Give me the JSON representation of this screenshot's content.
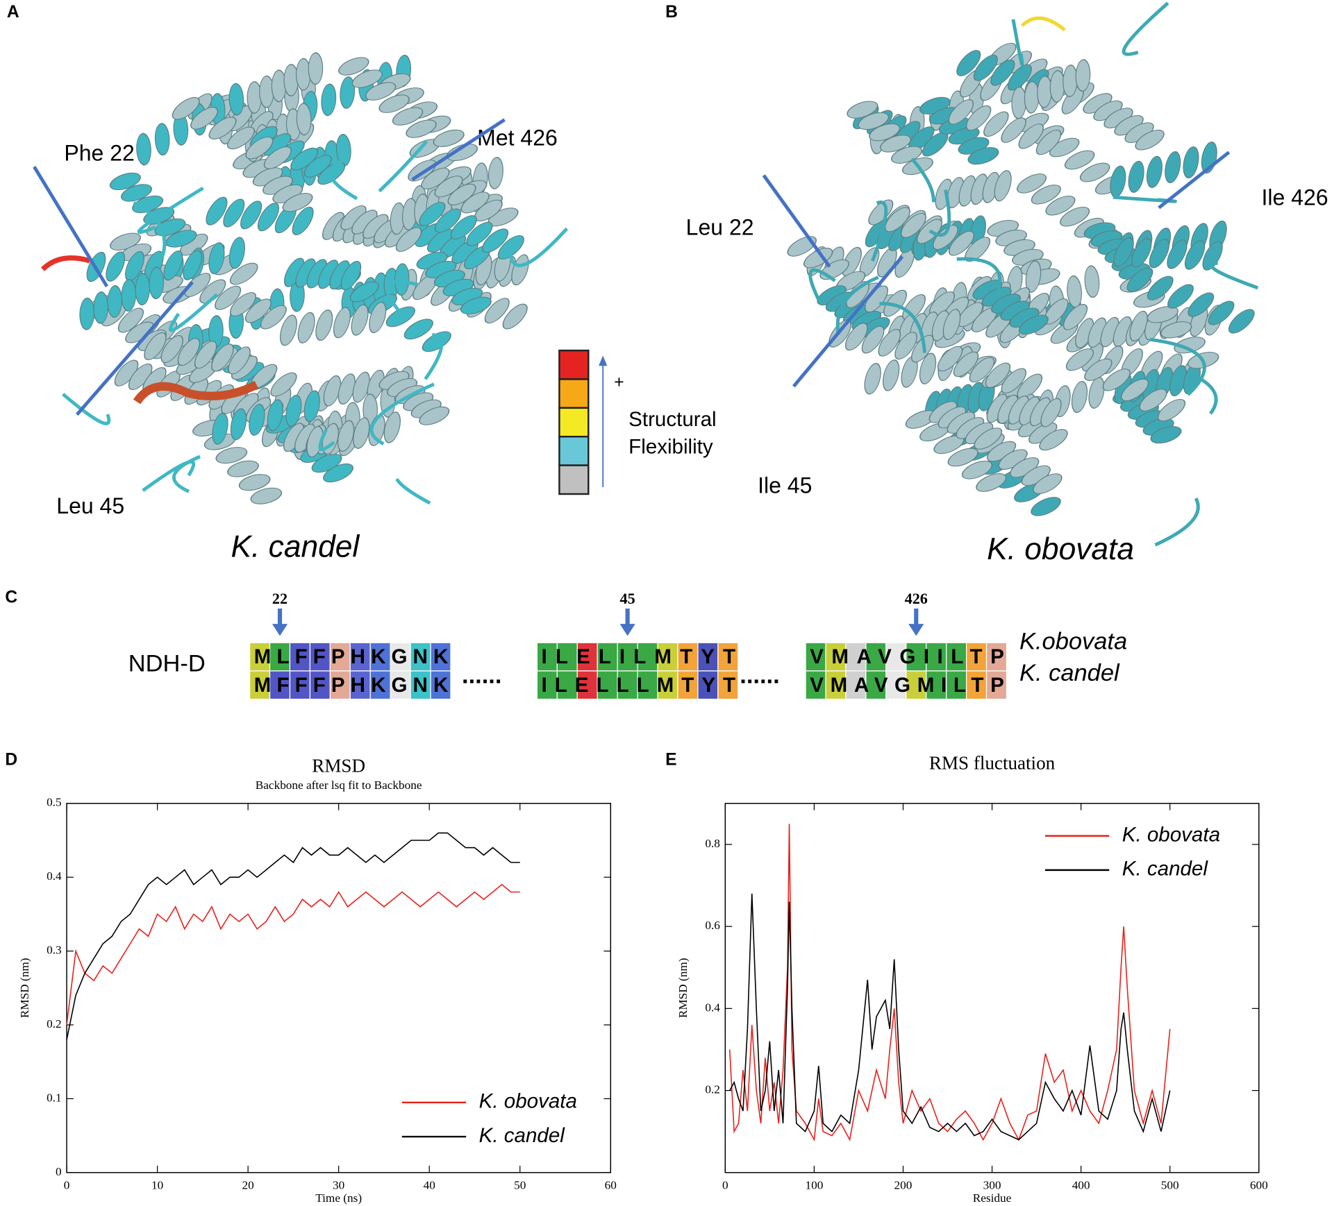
{
  "panels": {
    "a": "A",
    "b": "B",
    "c": "C",
    "d": "D",
    "e": "E"
  },
  "structures": {
    "candel": {
      "species": "K. candel",
      "residues": [
        "Phe 22",
        "Met 426",
        "Leu 45"
      ]
    },
    "obovata": {
      "species": "K. obovata",
      "residues": [
        "Leu 22",
        "Ile 426",
        "Ile 45"
      ]
    },
    "scale": {
      "plus": "+",
      "label": [
        "Structural",
        "Flexibility"
      ],
      "colors": [
        "#e52421",
        "#f7a816",
        "#f4ea23",
        "#68c8d8",
        "#c0c0c0"
      ]
    }
  },
  "alignment": {
    "gene": "NDH-D",
    "positions": [
      "22",
      "45",
      "426"
    ],
    "species": [
      "K.obovata",
      "K. candel"
    ],
    "gap": "......",
    "blocks": [
      [
        "MLFFPHKGNK",
        "MFFFPHKGNK"
      ],
      [
        "ILELILMTYT",
        "ILELLLMTYT"
      ],
      [
        "VMAVGIILTP",
        "VMAVGMILTP"
      ]
    ],
    "residue_colors": {
      "M": "#c9cf3a",
      "L": "#3aa845",
      "F": "#5256c4",
      "P": "#e3a996",
      "H": "#5a64cf",
      "K": "#4e72d6",
      "G": "#e8e8e8",
      "N": "#3cc2c8",
      "I": "#3aa845",
      "E": "#e0323a",
      "T": "#f2a33a",
      "Y": "#4a52b8",
      "V": "#3aa845",
      "A": "#d0d0d0"
    }
  },
  "chart_data": [
    {
      "type": "line",
      "title": "RMSD",
      "subtitle": "Backbone after lsq fit to Backbone",
      "x_label": "Time (ns)",
      "y_label": "RMSD (nm)",
      "xlim": [
        0,
        60
      ],
      "xticks": [
        0,
        10,
        20,
        30,
        40,
        50,
        60
      ],
      "ylim": [
        0,
        0.5
      ],
      "yticks": [
        0,
        0.1,
        0.2,
        0.3,
        0.4,
        0.5
      ],
      "legend": "lower right",
      "x": [
        0,
        1,
        2,
        3,
        4,
        5,
        6,
        7,
        8,
        9,
        10,
        11,
        12,
        13,
        14,
        15,
        16,
        17,
        18,
        19,
        20,
        21,
        22,
        23,
        24,
        25,
        26,
        27,
        28,
        29,
        30,
        31,
        32,
        33,
        34,
        35,
        36,
        37,
        38,
        39,
        40,
        41,
        42,
        43,
        44,
        45,
        46,
        47,
        48,
        49,
        50
      ],
      "series": [
        {
          "name": "K. obovata",
          "color": "#e8211c",
          "values": [
            0.2,
            0.3,
            0.27,
            0.26,
            0.28,
            0.27,
            0.29,
            0.31,
            0.33,
            0.32,
            0.35,
            0.34,
            0.36,
            0.33,
            0.35,
            0.34,
            0.36,
            0.33,
            0.35,
            0.34,
            0.35,
            0.33,
            0.34,
            0.36,
            0.34,
            0.35,
            0.37,
            0.36,
            0.37,
            0.36,
            0.38,
            0.36,
            0.37,
            0.38,
            0.37,
            0.36,
            0.37,
            0.38,
            0.37,
            0.36,
            0.37,
            0.38,
            0.37,
            0.36,
            0.37,
            0.38,
            0.37,
            0.38,
            0.39,
            0.38,
            0.38
          ]
        },
        {
          "name": "K. candel",
          "color": "#000000",
          "values": [
            0.18,
            0.24,
            0.27,
            0.29,
            0.31,
            0.32,
            0.34,
            0.35,
            0.37,
            0.39,
            0.4,
            0.39,
            0.4,
            0.41,
            0.39,
            0.4,
            0.41,
            0.39,
            0.4,
            0.4,
            0.41,
            0.4,
            0.41,
            0.42,
            0.43,
            0.42,
            0.44,
            0.43,
            0.44,
            0.43,
            0.43,
            0.44,
            0.43,
            0.42,
            0.43,
            0.42,
            0.43,
            0.44,
            0.45,
            0.45,
            0.45,
            0.46,
            0.46,
            0.45,
            0.44,
            0.44,
            0.43,
            0.44,
            0.43,
            0.42,
            0.42
          ]
        }
      ]
    },
    {
      "type": "line",
      "title": "RMS fluctuation",
      "x_label": "Residue",
      "y_label": "RMSD (nm)",
      "xlim": [
        0,
        600
      ],
      "xticks": [
        0,
        100,
        200,
        300,
        400,
        500,
        600
      ],
      "ylim": [
        0,
        0.9
      ],
      "yticks": [
        0.2,
        0.4,
        0.6,
        0.8
      ],
      "legend": "upper right",
      "x": [
        5,
        10,
        15,
        20,
        25,
        30,
        35,
        40,
        45,
        50,
        55,
        60,
        65,
        70,
        72,
        75,
        80,
        90,
        100,
        105,
        110,
        120,
        130,
        140,
        150,
        160,
        165,
        170,
        180,
        185,
        190,
        195,
        200,
        210,
        220,
        230,
        240,
        250,
        260,
        270,
        280,
        290,
        300,
        310,
        320,
        330,
        340,
        350,
        360,
        370,
        380,
        390,
        400,
        410,
        420,
        430,
        440,
        445,
        448,
        452,
        460,
        470,
        480,
        490,
        500
      ],
      "series": [
        {
          "name": "K. obovata",
          "color": "#e8211c",
          "values": [
            0.3,
            0.1,
            0.12,
            0.25,
            0.15,
            0.36,
            0.2,
            0.12,
            0.28,
            0.15,
            0.22,
            0.12,
            0.25,
            0.5,
            0.85,
            0.3,
            0.15,
            0.12,
            0.08,
            0.18,
            0.1,
            0.09,
            0.12,
            0.08,
            0.2,
            0.15,
            0.2,
            0.25,
            0.18,
            0.3,
            0.4,
            0.22,
            0.12,
            0.2,
            0.15,
            0.18,
            0.12,
            0.1,
            0.13,
            0.15,
            0.12,
            0.08,
            0.12,
            0.18,
            0.12,
            0.08,
            0.14,
            0.15,
            0.29,
            0.22,
            0.25,
            0.15,
            0.2,
            0.15,
            0.12,
            0.2,
            0.3,
            0.5,
            0.6,
            0.45,
            0.2,
            0.12,
            0.2,
            0.12,
            0.35
          ]
        },
        {
          "name": "K. candel",
          "color": "#000000",
          "values": [
            0.2,
            0.22,
            0.18,
            0.15,
            0.35,
            0.68,
            0.4,
            0.15,
            0.2,
            0.32,
            0.15,
            0.25,
            0.12,
            0.45,
            0.66,
            0.4,
            0.12,
            0.1,
            0.15,
            0.26,
            0.12,
            0.1,
            0.14,
            0.12,
            0.25,
            0.47,
            0.3,
            0.38,
            0.42,
            0.35,
            0.52,
            0.3,
            0.15,
            0.12,
            0.16,
            0.11,
            0.1,
            0.12,
            0.1,
            0.12,
            0.09,
            0.1,
            0.13,
            0.1,
            0.09,
            0.08,
            0.1,
            0.12,
            0.22,
            0.18,
            0.15,
            0.2,
            0.14,
            0.31,
            0.15,
            0.13,
            0.2,
            0.35,
            0.39,
            0.3,
            0.15,
            0.1,
            0.18,
            0.1,
            0.2
          ]
        }
      ]
    }
  ]
}
